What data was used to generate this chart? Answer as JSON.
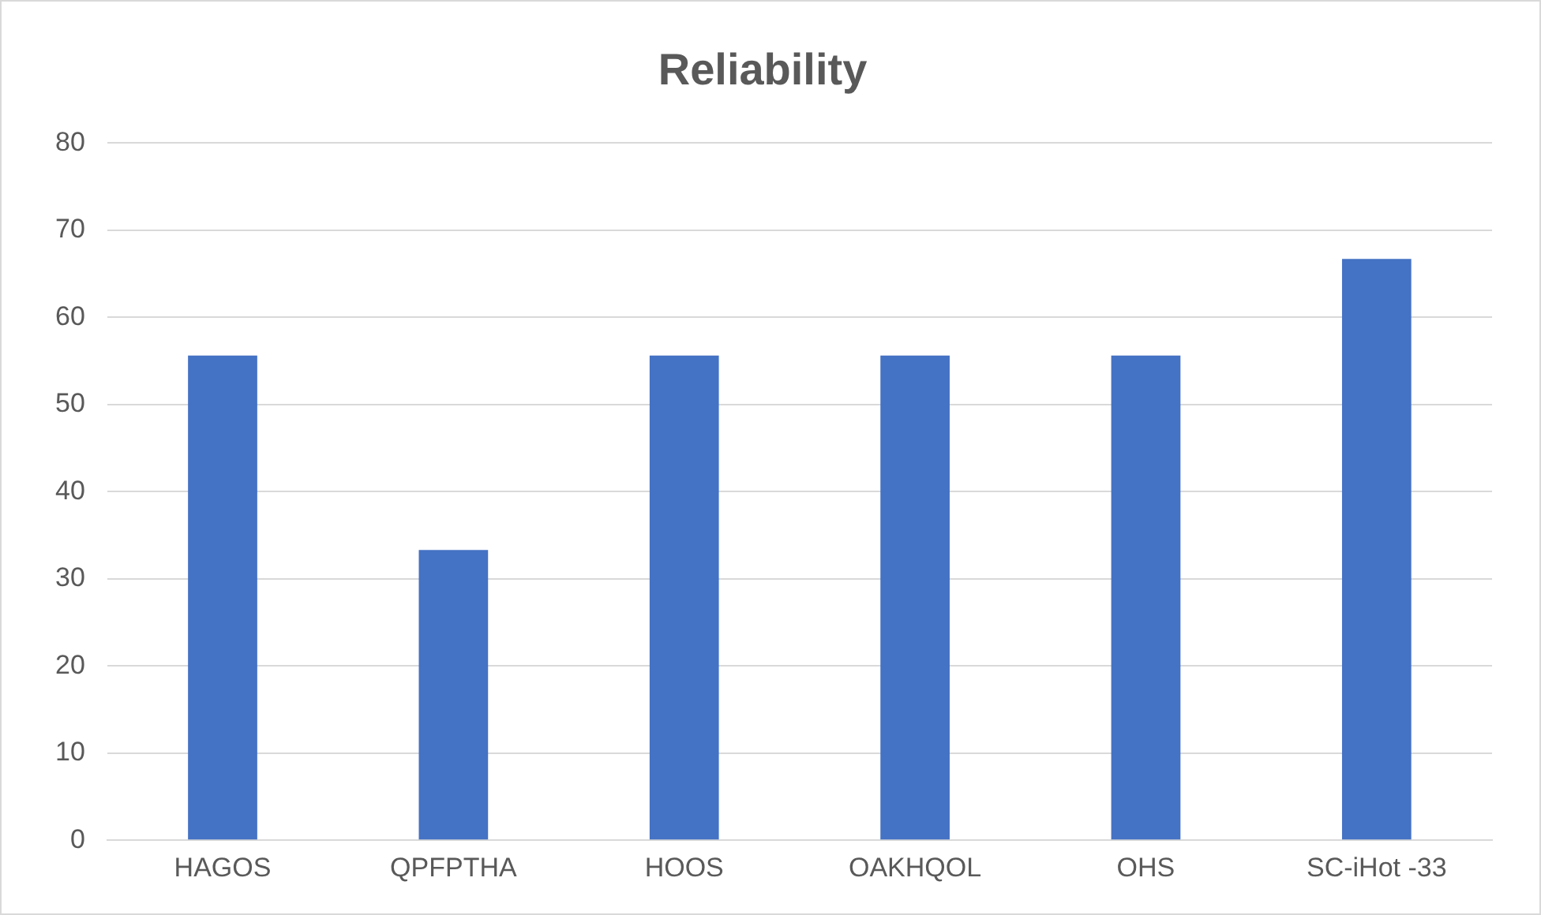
{
  "chart_data": {
    "type": "bar",
    "title": "Reliability",
    "categories": [
      "HAGOS",
      "QPFPTHA",
      "HOOS",
      "OAKHQOL",
      "OHS",
      "SC-iHot -33"
    ],
    "values": [
      55.6,
      33.3,
      55.6,
      55.6,
      55.6,
      66.7
    ],
    "color": "#4472c4",
    "ylim": [
      0,
      80
    ],
    "yticks": [
      0,
      10,
      20,
      30,
      40,
      50,
      60,
      70,
      80
    ],
    "grid": "y"
  }
}
